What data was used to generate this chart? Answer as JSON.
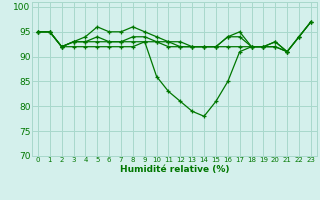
{
  "title": "",
  "xlabel": "Humidité relative (%)",
  "ylabel": "",
  "background_color": "#d4f0ec",
  "grid_color": "#a8d8cc",
  "line_color": "#007700",
  "marker_color": "#007700",
  "xlim": [
    -0.5,
    23.5
  ],
  "ylim": [
    70,
    101
  ],
  "yticks": [
    70,
    75,
    80,
    85,
    90,
    95,
    100
  ],
  "xticks": [
    0,
    1,
    2,
    3,
    4,
    5,
    6,
    7,
    8,
    9,
    10,
    11,
    12,
    13,
    14,
    15,
    16,
    17,
    18,
    19,
    20,
    21,
    22,
    23
  ],
  "xtick_labels": [
    "0",
    "1",
    "2",
    "3",
    "4",
    "5",
    "6",
    "7",
    "8",
    "9",
    "10",
    "11",
    "12",
    "13",
    "14",
    "15",
    "16",
    "17",
    "18",
    "19",
    "20",
    "21",
    "22",
    "23"
  ],
  "series": [
    [
      95,
      95,
      92,
      93,
      94,
      96,
      95,
      95,
      96,
      95,
      94,
      93,
      93,
      92,
      92,
      92,
      94,
      95,
      92,
      92,
      93,
      91,
      94,
      97
    ],
    [
      95,
      95,
      92,
      93,
      93,
      94,
      93,
      93,
      94,
      94,
      93,
      93,
      92,
      92,
      92,
      92,
      94,
      94,
      92,
      92,
      92,
      91,
      94,
      97
    ],
    [
      95,
      95,
      92,
      93,
      93,
      93,
      93,
      93,
      93,
      93,
      93,
      92,
      92,
      92,
      92,
      92,
      92,
      92,
      92,
      92,
      92,
      91,
      null,
      null
    ],
    [
      95,
      95,
      92,
      92,
      92,
      92,
      92,
      92,
      92,
      93,
      86,
      83,
      81,
      79,
      78,
      81,
      85,
      91,
      92,
      92,
      93,
      91,
      94,
      97
    ]
  ]
}
